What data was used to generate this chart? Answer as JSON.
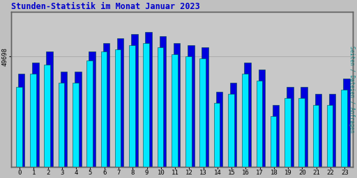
{
  "title": "Stunden-Statistik im Monat Januar 2023",
  "title_color": "#0000cc",
  "ylabel": "Seiten / Dateien / Anfragen",
  "ylabel_color": "#008888",
  "xlabel_labels": [
    "0",
    "1",
    "2",
    "3",
    "4",
    "5",
    "6",
    "7",
    "8",
    "9",
    "10",
    "11",
    "12",
    "13",
    "14",
    "15",
    "16",
    "17",
    "18",
    "19",
    "20",
    "21",
    "22",
    "23"
  ],
  "ytick_label": "49698",
  "background_color": "#c0c0c0",
  "plot_bg_color": "#c8c8c8",
  "bar_color_cyan": "#00e8ff",
  "bar_color_blue": "#0000dd",
  "bar_edge_color": "#004444",
  "values_pages": [
    49560,
    49620,
    49660,
    49580,
    49580,
    49680,
    49720,
    49730,
    49750,
    49760,
    49740,
    49710,
    49700,
    49690,
    49490,
    49530,
    49620,
    49590,
    49430,
    49510,
    49510,
    49480,
    49480,
    49550
  ],
  "values_files": [
    49620,
    49670,
    49720,
    49630,
    49630,
    49720,
    49760,
    49780,
    49800,
    49810,
    49790,
    49760,
    49750,
    49740,
    49540,
    49580,
    49670,
    49640,
    49480,
    49560,
    49560,
    49530,
    49530,
    49600
  ],
  "ymin": 49200,
  "ymax": 49900,
  "ytick_val": 49698,
  "figsize": [
    5.12,
    2.56
  ],
  "dpi": 100
}
